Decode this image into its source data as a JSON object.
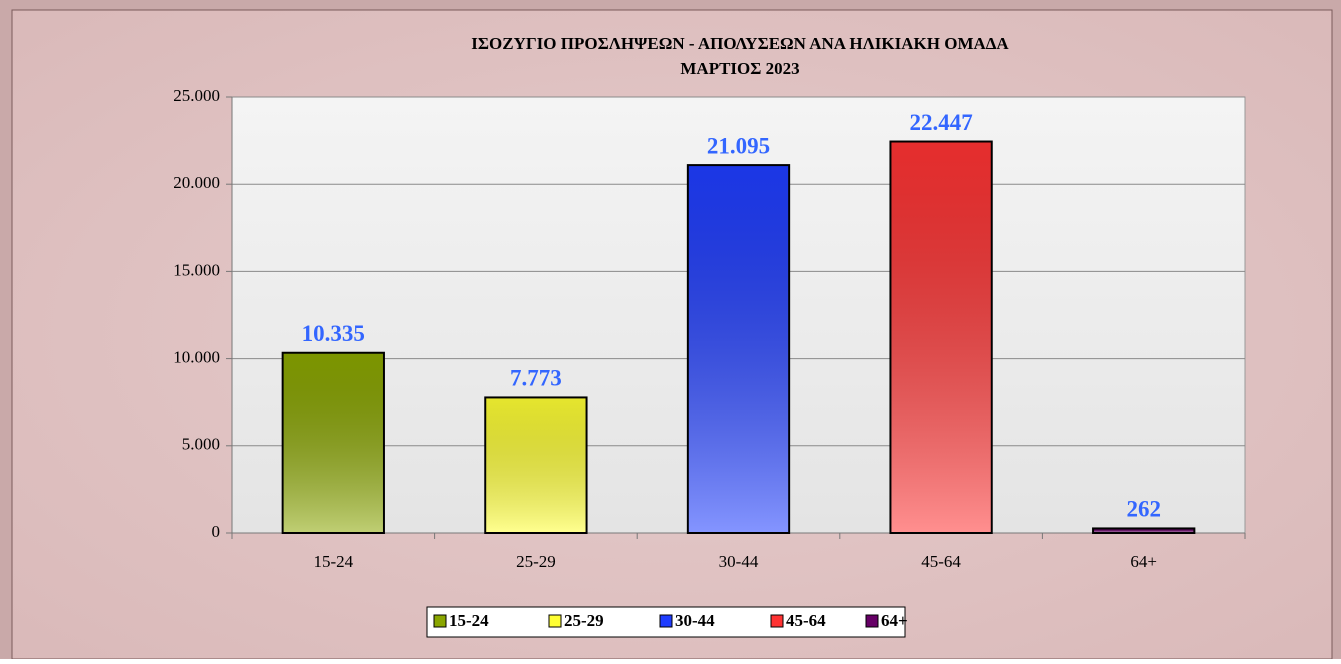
{
  "chart_data": {
    "type": "bar",
    "title": "ΙΣΟΖΥΓΙΟ  ΠΡΟΣΛΗΨΕΩΝ - ΑΠΟΛΥΣΕΩΝ ΑΝΑ ΗΛΙΚΙΑΚΗ ΟΜΑΔΑ",
    "subtitle": "ΜΑΡΤΙΟΣ  2023",
    "categories": [
      "15-24",
      "25-29",
      "30-44",
      "45-64",
      "64+"
    ],
    "values": [
      10335,
      7773,
      21095,
      22447,
      262
    ],
    "value_labels": [
      "10.335",
      "7.773",
      "21.095",
      "22.447",
      "262"
    ],
    "colors": [
      "#8aa600",
      "#ffff33",
      "#1f3dff",
      "#ff3333",
      "#660066"
    ],
    "ylim": [
      0,
      25000
    ],
    "yticks": [
      0,
      {
        "value": 5000,
        "label": "5.000"
      },
      {
        "value": 10000,
        "label": "10.000"
      },
      {
        "value": 15000,
        "label": "15.000"
      },
      {
        "value": 20000,
        "label": "20.000"
      },
      {
        "value": 25000,
        "label": "25.000"
      }
    ],
    "grid": true,
    "legend": "bottom"
  }
}
